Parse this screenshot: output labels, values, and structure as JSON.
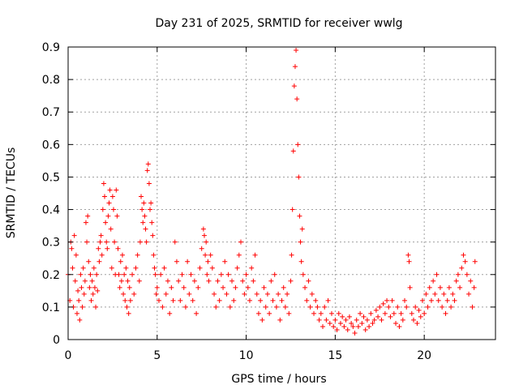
{
  "chart_data": {
    "type": "scatter",
    "title": "Day 231 of 2025, SRMTID for receiver wwlg",
    "xlabel": "GPS time / hours",
    "ylabel": "SRMTID / TECUs",
    "xlim": [
      0,
      24
    ],
    "ylim": [
      0,
      0.9
    ],
    "xticks": [
      0,
      5,
      10,
      15,
      20
    ],
    "yticks": [
      0,
      0.1,
      0.2,
      0.3,
      0.4,
      0.5,
      0.6,
      0.7,
      0.8,
      0.9
    ],
    "xtick_labels": [
      "0",
      "5",
      "10",
      "15",
      "20"
    ],
    "ytick_labels": [
      "0",
      "0.1",
      "0.2",
      "0.3",
      "0.4",
      "0.5",
      "0.6",
      "0.7",
      "0.8",
      "0.9"
    ],
    "grid": true,
    "marker": "+",
    "marker_color": "#ff0000",
    "series": [
      {
        "name": "SRMTID",
        "points": [
          [
            0.0,
            0.2
          ],
          [
            0.1,
            0.12
          ],
          [
            0.15,
            0.3
          ],
          [
            0.2,
            0.28
          ],
          [
            0.25,
            0.22
          ],
          [
            0.3,
            0.1
          ],
          [
            0.35,
            0.32
          ],
          [
            0.4,
            0.18
          ],
          [
            0.45,
            0.26
          ],
          [
            0.5,
            0.08
          ],
          [
            0.55,
            0.15
          ],
          [
            0.6,
            0.12
          ],
          [
            0.65,
            0.06
          ],
          [
            0.7,
            0.2
          ],
          [
            0.75,
            0.16
          ],
          [
            0.8,
            0.1
          ],
          [
            0.85,
            0.22
          ],
          [
            0.9,
            0.14
          ],
          [
            0.95,
            0.18
          ],
          [
            1.0,
            0.36
          ],
          [
            1.05,
            0.3
          ],
          [
            1.1,
            0.38
          ],
          [
            1.15,
            0.24
          ],
          [
            1.2,
            0.16
          ],
          [
            1.25,
            0.2
          ],
          [
            1.3,
            0.12
          ],
          [
            1.35,
            0.18
          ],
          [
            1.4,
            0.14
          ],
          [
            1.45,
            0.22
          ],
          [
            1.5,
            0.16
          ],
          [
            1.55,
            0.1
          ],
          [
            1.6,
            0.2
          ],
          [
            1.65,
            0.15
          ],
          [
            1.7,
            0.28
          ],
          [
            1.75,
            0.24
          ],
          [
            1.8,
            0.3
          ],
          [
            1.85,
            0.32
          ],
          [
            1.9,
            0.26
          ],
          [
            1.95,
            0.4
          ],
          [
            2.0,
            0.48
          ],
          [
            2.05,
            0.44
          ],
          [
            2.1,
            0.36
          ],
          [
            2.15,
            0.3
          ],
          [
            2.2,
            0.28
          ],
          [
            2.25,
            0.38
          ],
          [
            2.3,
            0.42
          ],
          [
            2.35,
            0.46
          ],
          [
            2.4,
            0.34
          ],
          [
            2.45,
            0.22
          ],
          [
            2.5,
            0.44
          ],
          [
            2.55,
            0.4
          ],
          [
            2.6,
            0.3
          ],
          [
            2.65,
            0.2
          ],
          [
            2.7,
            0.46
          ],
          [
            2.75,
            0.38
          ],
          [
            2.8,
            0.28
          ],
          [
            2.85,
            0.2
          ],
          [
            2.9,
            0.16
          ],
          [
            2.95,
            0.24
          ],
          [
            3.0,
            0.18
          ],
          [
            3.05,
            0.26
          ],
          [
            3.1,
            0.14
          ],
          [
            3.15,
            0.2
          ],
          [
            3.2,
            0.12
          ],
          [
            3.25,
            0.22
          ],
          [
            3.3,
            0.1
          ],
          [
            3.35,
            0.18
          ],
          [
            3.4,
            0.08
          ],
          [
            3.45,
            0.16
          ],
          [
            3.5,
            0.12
          ],
          [
            3.6,
            0.2
          ],
          [
            3.7,
            0.14
          ],
          [
            3.8,
            0.22
          ],
          [
            3.9,
            0.26
          ],
          [
            4.0,
            0.18
          ],
          [
            4.05,
            0.3
          ],
          [
            4.1,
            0.44
          ],
          [
            4.15,
            0.4
          ],
          [
            4.2,
            0.36
          ],
          [
            4.25,
            0.42
          ],
          [
            4.3,
            0.38
          ],
          [
            4.35,
            0.34
          ],
          [
            4.4,
            0.3
          ],
          [
            4.45,
            0.52
          ],
          [
            4.5,
            0.54
          ],
          [
            4.55,
            0.48
          ],
          [
            4.6,
            0.4
          ],
          [
            4.65,
            0.42
          ],
          [
            4.7,
            0.36
          ],
          [
            4.75,
            0.32
          ],
          [
            4.8,
            0.26
          ],
          [
            4.85,
            0.22
          ],
          [
            4.9,
            0.2
          ],
          [
            4.95,
            0.14
          ],
          [
            5.0,
            0.16
          ],
          [
            5.1,
            0.12
          ],
          [
            5.2,
            0.2
          ],
          [
            5.3,
            0.1
          ],
          [
            5.4,
            0.22
          ],
          [
            5.5,
            0.14
          ],
          [
            5.6,
            0.18
          ],
          [
            5.7,
            0.08
          ],
          [
            5.8,
            0.16
          ],
          [
            5.9,
            0.12
          ],
          [
            6.0,
            0.3
          ],
          [
            6.1,
            0.24
          ],
          [
            6.2,
            0.18
          ],
          [
            6.3,
            0.12
          ],
          [
            6.4,
            0.2
          ],
          [
            6.5,
            0.16
          ],
          [
            6.6,
            0.1
          ],
          [
            6.7,
            0.24
          ],
          [
            6.8,
            0.14
          ],
          [
            6.9,
            0.2
          ],
          [
            7.0,
            0.12
          ],
          [
            7.1,
            0.18
          ],
          [
            7.2,
            0.08
          ],
          [
            7.3,
            0.16
          ],
          [
            7.4,
            0.22
          ],
          [
            7.5,
            0.28
          ],
          [
            7.6,
            0.34
          ],
          [
            7.65,
            0.32
          ],
          [
            7.7,
            0.26
          ],
          [
            7.75,
            0.3
          ],
          [
            7.8,
            0.2
          ],
          [
            7.85,
            0.24
          ],
          [
            7.9,
            0.18
          ],
          [
            8.0,
            0.26
          ],
          [
            8.1,
            0.22
          ],
          [
            8.2,
            0.14
          ],
          [
            8.3,
            0.1
          ],
          [
            8.4,
            0.18
          ],
          [
            8.5,
            0.12
          ],
          [
            8.6,
            0.2
          ],
          [
            8.7,
            0.16
          ],
          [
            8.8,
            0.24
          ],
          [
            8.9,
            0.14
          ],
          [
            9.0,
            0.2
          ],
          [
            9.1,
            0.1
          ],
          [
            9.2,
            0.18
          ],
          [
            9.3,
            0.12
          ],
          [
            9.4,
            0.16
          ],
          [
            9.5,
            0.22
          ],
          [
            9.6,
            0.26
          ],
          [
            9.7,
            0.3
          ],
          [
            9.8,
            0.18
          ],
          [
            9.9,
            0.14
          ],
          [
            10.0,
            0.2
          ],
          [
            10.1,
            0.16
          ],
          [
            10.2,
            0.12
          ],
          [
            10.3,
            0.22
          ],
          [
            10.4,
            0.18
          ],
          [
            10.5,
            0.26
          ],
          [
            10.6,
            0.14
          ],
          [
            10.7,
            0.08
          ],
          [
            10.8,
            0.12
          ],
          [
            10.9,
            0.06
          ],
          [
            11.0,
            0.16
          ],
          [
            11.1,
            0.1
          ],
          [
            11.2,
            0.14
          ],
          [
            11.3,
            0.08
          ],
          [
            11.4,
            0.18
          ],
          [
            11.5,
            0.12
          ],
          [
            11.6,
            0.2
          ],
          [
            11.7,
            0.1
          ],
          [
            11.8,
            0.14
          ],
          [
            11.9,
            0.06
          ],
          [
            12.0,
            0.12
          ],
          [
            12.1,
            0.16
          ],
          [
            12.2,
            0.1
          ],
          [
            12.3,
            0.14
          ],
          [
            12.4,
            0.08
          ],
          [
            12.5,
            0.18
          ],
          [
            12.55,
            0.26
          ],
          [
            12.6,
            0.4
          ],
          [
            12.65,
            0.58
          ],
          [
            12.7,
            0.78
          ],
          [
            12.75,
            0.84
          ],
          [
            12.8,
            0.89
          ],
          [
            12.85,
            0.74
          ],
          [
            12.9,
            0.6
          ],
          [
            12.95,
            0.5
          ],
          [
            13.0,
            0.38
          ],
          [
            13.05,
            0.3
          ],
          [
            13.1,
            0.24
          ],
          [
            13.15,
            0.34
          ],
          [
            13.2,
            0.2
          ],
          [
            13.3,
            0.16
          ],
          [
            13.4,
            0.12
          ],
          [
            13.5,
            0.18
          ],
          [
            13.6,
            0.1
          ],
          [
            13.7,
            0.14
          ],
          [
            13.8,
            0.08
          ],
          [
            13.9,
            0.12
          ],
          [
            14.0,
            0.1
          ],
          [
            14.1,
            0.06
          ],
          [
            14.2,
            0.08
          ],
          [
            14.3,
            0.04
          ],
          [
            14.4,
            0.1
          ],
          [
            14.5,
            0.06
          ],
          [
            14.6,
            0.12
          ],
          [
            14.7,
            0.05
          ],
          [
            14.8,
            0.08
          ],
          [
            14.9,
            0.04
          ],
          [
            15.0,
            0.06
          ],
          [
            15.1,
            0.03
          ],
          [
            15.2,
            0.08
          ],
          [
            15.3,
            0.05
          ],
          [
            15.4,
            0.07
          ],
          [
            15.5,
            0.04
          ],
          [
            15.6,
            0.06
          ],
          [
            15.7,
            0.03
          ],
          [
            15.8,
            0.07
          ],
          [
            15.9,
            0.05
          ],
          [
            16.0,
            0.04
          ],
          [
            16.1,
            0.02
          ],
          [
            16.2,
            0.06
          ],
          [
            16.3,
            0.04
          ],
          [
            16.4,
            0.08
          ],
          [
            16.5,
            0.05
          ],
          [
            16.6,
            0.07
          ],
          [
            16.7,
            0.03
          ],
          [
            16.8,
            0.06
          ],
          [
            16.9,
            0.04
          ],
          [
            17.0,
            0.08
          ],
          [
            17.1,
            0.05
          ],
          [
            17.2,
            0.06
          ],
          [
            17.3,
            0.09
          ],
          [
            17.4,
            0.07
          ],
          [
            17.5,
            0.1
          ],
          [
            17.6,
            0.06
          ],
          [
            17.7,
            0.11
          ],
          [
            17.8,
            0.08
          ],
          [
            17.9,
            0.12
          ],
          [
            18.0,
            0.1
          ],
          [
            18.1,
            0.07
          ],
          [
            18.2,
            0.12
          ],
          [
            18.3,
            0.08
          ],
          [
            18.4,
            0.05
          ],
          [
            18.5,
            0.1
          ],
          [
            18.6,
            0.04
          ],
          [
            18.7,
            0.08
          ],
          [
            18.8,
            0.06
          ],
          [
            18.9,
            0.12
          ],
          [
            19.0,
            0.1
          ],
          [
            19.1,
            0.26
          ],
          [
            19.15,
            0.24
          ],
          [
            19.2,
            0.16
          ],
          [
            19.3,
            0.08
          ],
          [
            19.4,
            0.06
          ],
          [
            19.5,
            0.1
          ],
          [
            19.6,
            0.05
          ],
          [
            19.7,
            0.09
          ],
          [
            19.8,
            0.07
          ],
          [
            19.9,
            0.12
          ],
          [
            20.0,
            0.08
          ],
          [
            20.1,
            0.14
          ],
          [
            20.2,
            0.1
          ],
          [
            20.3,
            0.16
          ],
          [
            20.4,
            0.12
          ],
          [
            20.5,
            0.18
          ],
          [
            20.6,
            0.14
          ],
          [
            20.7,
            0.2
          ],
          [
            20.8,
            0.12
          ],
          [
            20.9,
            0.16
          ],
          [
            21.0,
            0.1
          ],
          [
            21.1,
            0.14
          ],
          [
            21.2,
            0.08
          ],
          [
            21.3,
            0.12
          ],
          [
            21.4,
            0.16
          ],
          [
            21.5,
            0.1
          ],
          [
            21.6,
            0.14
          ],
          [
            21.7,
            0.12
          ],
          [
            21.8,
            0.18
          ],
          [
            21.9,
            0.2
          ],
          [
            22.0,
            0.16
          ],
          [
            22.1,
            0.22
          ],
          [
            22.2,
            0.26
          ],
          [
            22.3,
            0.24
          ],
          [
            22.4,
            0.2
          ],
          [
            22.5,
            0.14
          ],
          [
            22.6,
            0.18
          ],
          [
            22.7,
            0.1
          ],
          [
            22.8,
            0.16
          ],
          [
            22.85,
            0.24
          ]
        ]
      }
    ]
  }
}
